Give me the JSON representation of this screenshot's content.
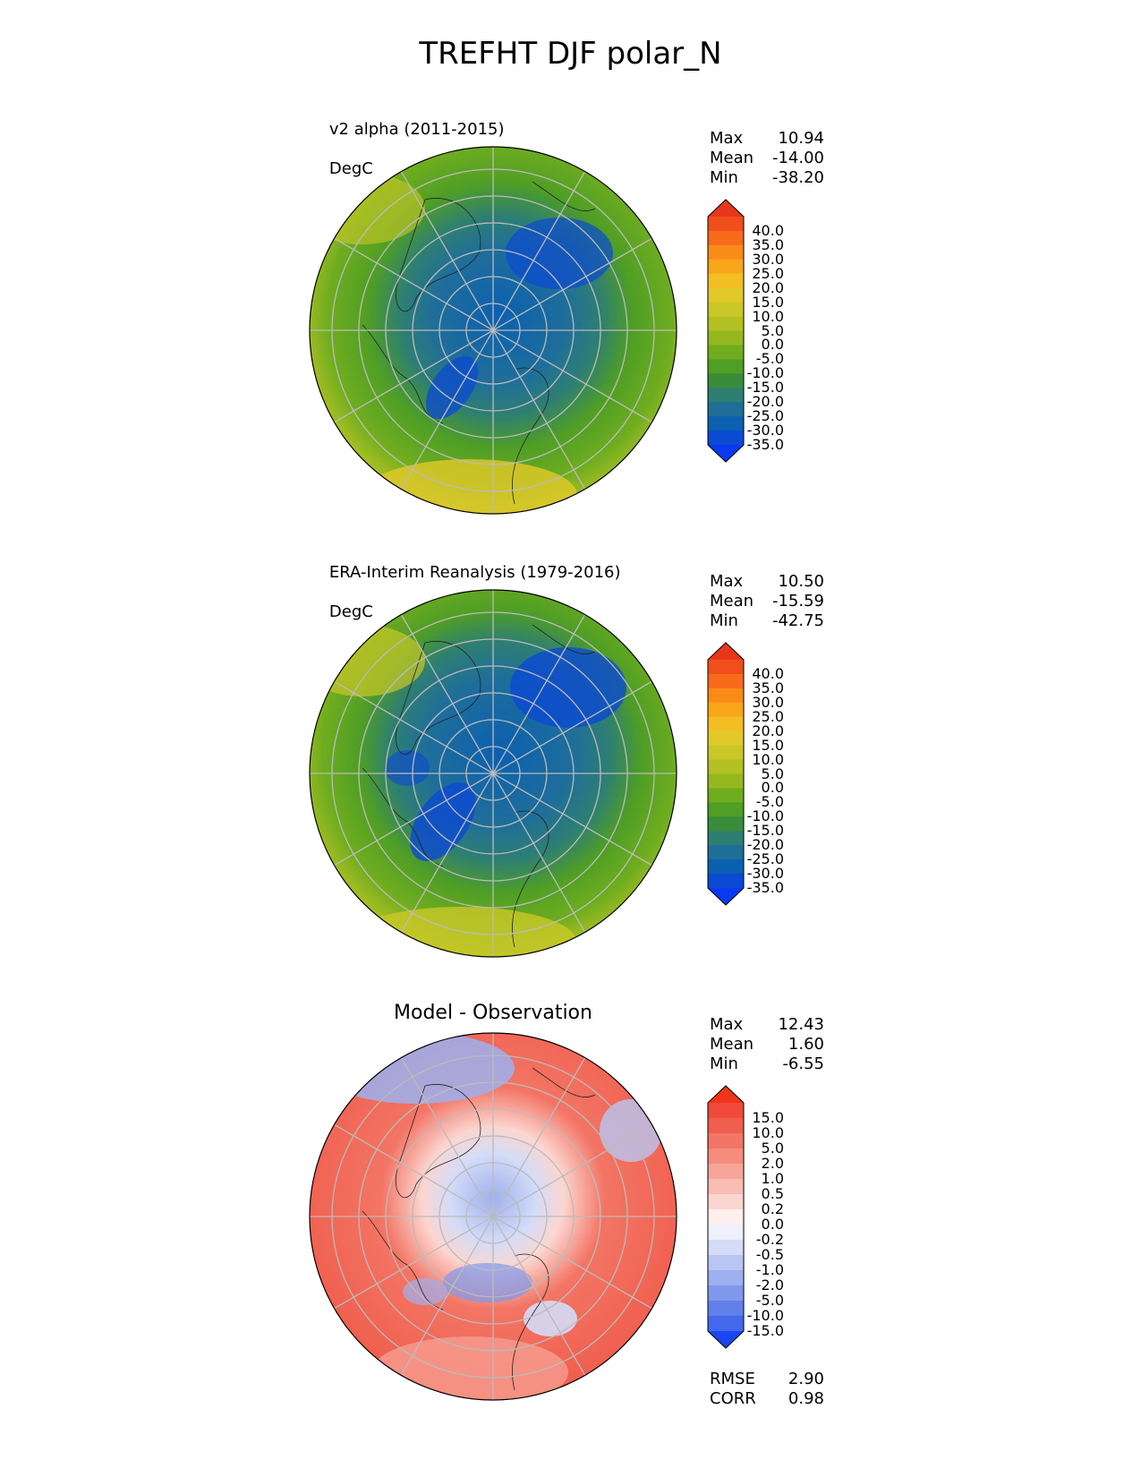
{
  "title": "TREFHT DJF polar_N",
  "chart_data": [
    {
      "type": "heatmap",
      "title": "v2 alpha (2011-2015)",
      "units": "DegC",
      "stats": [
        {
          "label": "Max",
          "value": "10.94"
        },
        {
          "label": "Mean",
          "value": "-14.00"
        },
        {
          "label": "Min",
          "value": "-38.20"
        }
      ],
      "colorbar": {
        "labels": [
          "40.0",
          "35.0",
          "30.0",
          "25.0",
          "20.0",
          "15.0",
          "10.0",
          "5.0",
          "0.0",
          "-5.0",
          "-10.0",
          "-15.0",
          "-20.0",
          "-25.0",
          "-30.0",
          "-35.0"
        ],
        "colors": [
          "#e8361b",
          "#f04e1a",
          "#f76b1a",
          "#fb8b18",
          "#f9a61a",
          "#f4be22",
          "#e2c92a",
          "#c9c828",
          "#b3c125",
          "#96b81f",
          "#6fad1f",
          "#4f9e25",
          "#3a8c3a",
          "#2e7f72",
          "#1f6e9a",
          "#0b60b0",
          "#0b4ad2",
          "#0a3af0"
        ]
      }
    },
    {
      "type": "heatmap",
      "title": "ERA-Interim Reanalysis (1979-2016)",
      "units": "DegC",
      "stats": [
        {
          "label": "Max",
          "value": "10.50"
        },
        {
          "label": "Mean",
          "value": "-15.59"
        },
        {
          "label": "Min",
          "value": "-42.75"
        }
      ],
      "colorbar": {
        "labels": [
          "40.0",
          "35.0",
          "30.0",
          "25.0",
          "20.0",
          "15.0",
          "10.0",
          "5.0",
          "0.0",
          "-5.0",
          "-10.0",
          "-15.0",
          "-20.0",
          "-25.0",
          "-30.0",
          "-35.0"
        ],
        "colors": [
          "#e8361b",
          "#f04e1a",
          "#f76b1a",
          "#fb8b18",
          "#f9a61a",
          "#f4be22",
          "#e2c92a",
          "#c9c828",
          "#b3c125",
          "#96b81f",
          "#6fad1f",
          "#4f9e25",
          "#3a8c3a",
          "#2e7f72",
          "#1f6e9a",
          "#0b60b0",
          "#0b4ad2",
          "#0a3af0"
        ]
      }
    },
    {
      "type": "heatmap",
      "title": "Model - Observation",
      "stats": [
        {
          "label": "Max",
          "value": "12.43"
        },
        {
          "label": "Mean",
          "value": "1.60"
        },
        {
          "label": "Min",
          "value": "-6.55"
        }
      ],
      "metrics": [
        {
          "label": "RMSE",
          "value": "2.90"
        },
        {
          "label": "CORR",
          "value": "0.98"
        }
      ],
      "colorbar": {
        "labels": [
          "15.0",
          "10.0",
          "5.0",
          "2.0",
          "1.0",
          "0.5",
          "0.2",
          "0.0",
          "-0.2",
          "-0.5",
          "-1.0",
          "-2.0",
          "-5.0",
          "-10.0",
          "-15.0"
        ],
        "colors": [
          "#f0341a",
          "#f1493a",
          "#f05e4d",
          "#f37565",
          "#f58c7e",
          "#f7a598",
          "#f9bdb3",
          "#fbd6d0",
          "#fdf0ee",
          "#eef0fb",
          "#d4dcf7",
          "#b9c6f3",
          "#9eb0ef",
          "#7f98ec",
          "#6180ea",
          "#4468ec",
          "#1a46f0"
        ]
      }
    }
  ]
}
